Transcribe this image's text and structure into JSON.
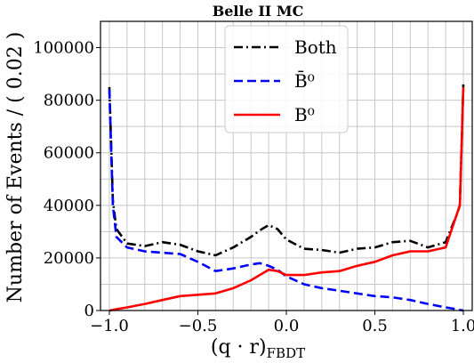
{
  "chart_data": {
    "type": "line",
    "title": "Belle II MC",
    "xlabel": "(q · r)_FBDT",
    "ylabel": "Number of Events / ( 0.02 )",
    "xlim": [
      -1.05,
      1.05
    ],
    "ylim": [
      0,
      110000
    ],
    "x_ticks": [
      -1.0,
      -0.5,
      0.0,
      0.5,
      1.0
    ],
    "x_tick_labels": [
      "−1.0",
      "−0.5",
      "0.0",
      "0.5",
      "1.0"
    ],
    "y_ticks": [
      0,
      20000,
      40000,
      60000,
      80000,
      100000
    ],
    "y_tick_labels": [
      "0",
      "20000",
      "40000",
      "60000",
      "80000",
      "100000"
    ],
    "grid": true,
    "legend_position": "top-center",
    "x": [
      -1.0,
      -0.98,
      -0.96,
      -0.9,
      -0.8,
      -0.7,
      -0.6,
      -0.5,
      -0.4,
      -0.3,
      -0.2,
      -0.15,
      -0.1,
      -0.05,
      0.0,
      0.1,
      0.2,
      0.3,
      0.4,
      0.5,
      0.6,
      0.7,
      0.8,
      0.9,
      0.96,
      0.98,
      1.0
    ],
    "series": [
      {
        "name": "Both",
        "color": "#000000",
        "linestyle": "dashdot",
        "values": [
          85000,
          42000,
          31000,
          25500,
          24500,
          26000,
          25000,
          22500,
          21000,
          24000,
          28000,
          30500,
          32500,
          31000,
          27000,
          23500,
          23000,
          22000,
          23500,
          24000,
          26000,
          26500,
          24000,
          26000,
          36000,
          40000,
          86000
        ]
      },
      {
        "name": "B̄⁰",
        "color": "#0000ff",
        "linestyle": "dashed",
        "values": [
          84000,
          40000,
          28000,
          24000,
          22500,
          22000,
          21500,
          18500,
          15000,
          16000,
          17500,
          18000,
          17000,
          15500,
          13000,
          10000,
          8500,
          7500,
          6500,
          5500,
          5000,
          4000,
          2500,
          1200,
          500,
          200,
          0
        ]
      },
      {
        "name": "B⁰",
        "color": "#ff0000",
        "linestyle": "solid",
        "values": [
          0,
          200,
          500,
          1200,
          2500,
          4000,
          5500,
          6000,
          6500,
          8500,
          11500,
          13500,
          15500,
          15000,
          13500,
          13500,
          14500,
          15000,
          17000,
          18500,
          21000,
          22500,
          22500,
          24000,
          36000,
          40000,
          85000
        ]
      }
    ]
  }
}
